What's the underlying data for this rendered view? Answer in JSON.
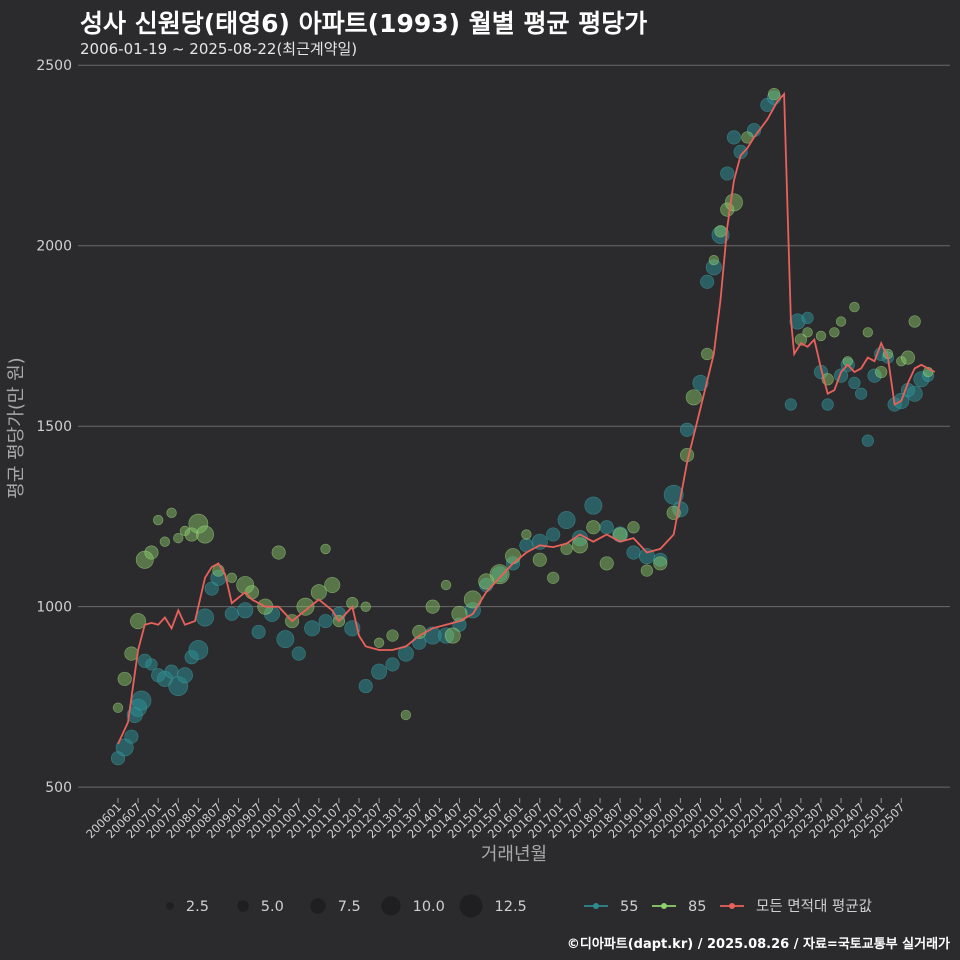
{
  "chart_data": {
    "type": "scatter",
    "title": "성사 신원당(태영6) 아파트(1993) 월별 평균 평당가",
    "subtitle": "2006-01-19 ~ 2025-08-22(최근계약일)",
    "xlabel": "거래년월",
    "ylabel": "평균 평당가(만 원)",
    "ylim": [
      470,
      2520
    ],
    "yticks": [
      500,
      1000,
      1500,
      2000,
      2500
    ],
    "xticks": [
      "200601",
      "200607",
      "200701",
      "200707",
      "200801",
      "200807",
      "200901",
      "200907",
      "201001",
      "201007",
      "201101",
      "201107",
      "201201",
      "201207",
      "201301",
      "201307",
      "201401",
      "201407",
      "201501",
      "201507",
      "201601",
      "201607",
      "201701",
      "201707",
      "201801",
      "201807",
      "201901",
      "201907",
      "202001",
      "202007",
      "202101",
      "202107",
      "202201",
      "202207",
      "202301",
      "202307",
      "202401",
      "202407",
      "202501",
      "202507"
    ],
    "size_legend": {
      "labels": [
        "2.5",
        "5.0",
        "7.5",
        "10.0",
        "12.5"
      ],
      "values": [
        2.5,
        5.0,
        7.5,
        10.0,
        12.5
      ]
    },
    "series_legend": [
      {
        "label": "55",
        "color": "#2e8b8f"
      },
      {
        "label": "85",
        "color": "#8fd16c"
      },
      {
        "label": "모든 면적대 평균값",
        "color": "#e8615b"
      }
    ],
    "line": {
      "name": "모든 면적대 평균값",
      "anchors": [
        [
          0,
          620
        ],
        [
          3,
          680
        ],
        [
          6,
          880
        ],
        [
          8,
          950
        ],
        [
          10,
          955
        ],
        [
          12,
          950
        ],
        [
          14,
          970
        ],
        [
          16,
          940
        ],
        [
          18,
          990
        ],
        [
          20,
          950
        ],
        [
          23,
          960
        ],
        [
          26,
          1080
        ],
        [
          28,
          1110
        ],
        [
          30,
          1120
        ],
        [
          32,
          1090
        ],
        [
          34,
          1010
        ],
        [
          38,
          1040
        ],
        [
          40,
          1020
        ],
        [
          44,
          1000
        ],
        [
          48,
          1000
        ],
        [
          52,
          960
        ],
        [
          56,
          990
        ],
        [
          60,
          1020
        ],
        [
          64,
          990
        ],
        [
          66,
          960
        ],
        [
          70,
          1000
        ],
        [
          72,
          920
        ],
        [
          74,
          890
        ],
        [
          78,
          880
        ],
        [
          82,
          880
        ],
        [
          86,
          890
        ],
        [
          90,
          920
        ],
        [
          94,
          940
        ],
        [
          98,
          950
        ],
        [
          102,
          960
        ],
        [
          106,
          980
        ],
        [
          110,
          1040
        ],
        [
          114,
          1080
        ],
        [
          118,
          1120
        ],
        [
          122,
          1150
        ],
        [
          126,
          1170
        ],
        [
          130,
          1165
        ],
        [
          134,
          1175
        ],
        [
          138,
          1200
        ],
        [
          142,
          1180
        ],
        [
          146,
          1200
        ],
        [
          150,
          1180
        ],
        [
          154,
          1190
        ],
        [
          158,
          1150
        ],
        [
          162,
          1160
        ],
        [
          166,
          1200
        ],
        [
          170,
          1400
        ],
        [
          174,
          1550
        ],
        [
          178,
          1700
        ],
        [
          180,
          1850
        ],
        [
          182,
          2050
        ],
        [
          184,
          2180
        ],
        [
          186,
          2250
        ],
        [
          188,
          2270
        ],
        [
          190,
          2300
        ],
        [
          194,
          2350
        ],
        [
          197,
          2400
        ],
        [
          199,
          2420
        ],
        [
          201,
          1800
        ],
        [
          202,
          1700
        ],
        [
          204,
          1730
        ],
        [
          206,
          1720
        ],
        [
          208,
          1740
        ],
        [
          210,
          1660
        ],
        [
          212,
          1590
        ],
        [
          214,
          1600
        ],
        [
          216,
          1650
        ],
        [
          218,
          1670
        ],
        [
          220,
          1650
        ],
        [
          222,
          1660
        ],
        [
          224,
          1690
        ],
        [
          226,
          1680
        ],
        [
          228,
          1730
        ],
        [
          230,
          1690
        ],
        [
          232,
          1560
        ],
        [
          234,
          1570
        ],
        [
          236,
          1620
        ],
        [
          238,
          1660
        ],
        [
          240,
          1670
        ],
        [
          242,
          1660
        ],
        [
          244,
          1650
        ]
      ]
    },
    "points_55": [
      [
        0,
        580,
        5
      ],
      [
        2,
        610,
        7
      ],
      [
        4,
        640,
        5
      ],
      [
        5,
        700,
        6
      ],
      [
        6,
        720,
        7
      ],
      [
        7,
        740,
        8
      ],
      [
        8,
        850,
        5
      ],
      [
        10,
        840,
        4
      ],
      [
        12,
        810,
        5
      ],
      [
        14,
        800,
        6
      ],
      [
        16,
        820,
        5
      ],
      [
        18,
        780,
        8
      ],
      [
        20,
        810,
        6
      ],
      [
        22,
        860,
        5
      ],
      [
        24,
        880,
        8
      ],
      [
        26,
        970,
        7
      ],
      [
        28,
        1050,
        5
      ],
      [
        30,
        1080,
        6
      ],
      [
        34,
        980,
        5
      ],
      [
        38,
        990,
        6
      ],
      [
        42,
        930,
        5
      ],
      [
        46,
        980,
        6
      ],
      [
        50,
        910,
        7
      ],
      [
        54,
        870,
        5
      ],
      [
        58,
        940,
        6
      ],
      [
        62,
        960,
        5
      ],
      [
        66,
        980,
        5
      ],
      [
        70,
        940,
        6
      ],
      [
        74,
        780,
        5
      ],
      [
        78,
        820,
        6
      ],
      [
        82,
        840,
        5
      ],
      [
        86,
        870,
        6
      ],
      [
        90,
        900,
        5
      ],
      [
        94,
        920,
        7
      ],
      [
        98,
        920,
        6
      ],
      [
        102,
        950,
        5
      ],
      [
        106,
        990,
        6
      ],
      [
        110,
        1060,
        5
      ],
      [
        114,
        1090,
        6
      ],
      [
        118,
        1120,
        5
      ],
      [
        122,
        1170,
        5
      ],
      [
        126,
        1180,
        6
      ],
      [
        130,
        1200,
        5
      ],
      [
        134,
        1240,
        7
      ],
      [
        138,
        1190,
        6
      ],
      [
        142,
        1280,
        7
      ],
      [
        146,
        1220,
        5
      ],
      [
        150,
        1200,
        6
      ],
      [
        154,
        1150,
        5
      ],
      [
        158,
        1140,
        6
      ],
      [
        162,
        1130,
        5
      ],
      [
        166,
        1310,
        8
      ],
      [
        168,
        1270,
        6
      ],
      [
        170,
        1490,
        5
      ],
      [
        174,
        1620,
        6
      ],
      [
        176,
        1900,
        5
      ],
      [
        178,
        1940,
        6
      ],
      [
        180,
        2030,
        7
      ],
      [
        182,
        2200,
        5
      ],
      [
        184,
        2300,
        5
      ],
      [
        186,
        2260,
        5
      ],
      [
        190,
        2320,
        5
      ],
      [
        194,
        2390,
        5
      ],
      [
        196,
        2410,
        5
      ],
      [
        201,
        1560,
        4
      ],
      [
        203,
        1790,
        6
      ],
      [
        206,
        1800,
        4
      ],
      [
        210,
        1650,
        5
      ],
      [
        212,
        1560,
        4
      ],
      [
        216,
        1640,
        5
      ],
      [
        218,
        1670,
        5
      ],
      [
        220,
        1620,
        4
      ],
      [
        222,
        1590,
        4
      ],
      [
        224,
        1460,
        4
      ],
      [
        226,
        1640,
        5
      ],
      [
        228,
        1700,
        5
      ],
      [
        230,
        1690,
        4
      ],
      [
        232,
        1560,
        5
      ],
      [
        234,
        1570,
        6
      ],
      [
        236,
        1600,
        5
      ],
      [
        238,
        1590,
        6
      ],
      [
        240,
        1630,
        6
      ],
      [
        242,
        1640,
        4
      ]
    ],
    "points_85": [
      [
        0,
        720,
        3
      ],
      [
        2,
        800,
        5
      ],
      [
        4,
        870,
        5
      ],
      [
        6,
        960,
        6
      ],
      [
        8,
        1130,
        7
      ],
      [
        10,
        1150,
        5
      ],
      [
        12,
        1240,
        3
      ],
      [
        14,
        1180,
        3
      ],
      [
        16,
        1260,
        3
      ],
      [
        18,
        1190,
        3
      ],
      [
        20,
        1210,
        3
      ],
      [
        22,
        1200,
        5
      ],
      [
        24,
        1230,
        8
      ],
      [
        26,
        1200,
        7
      ],
      [
        30,
        1100,
        4
      ],
      [
        34,
        1080,
        3
      ],
      [
        38,
        1060,
        7
      ],
      [
        40,
        1040,
        5
      ],
      [
        44,
        1000,
        6
      ],
      [
        48,
        1150,
        5
      ],
      [
        52,
        960,
        5
      ],
      [
        56,
        1000,
        7
      ],
      [
        60,
        1040,
        6
      ],
      [
        62,
        1160,
        3
      ],
      [
        64,
        1060,
        6
      ],
      [
        66,
        960,
        4
      ],
      [
        70,
        1010,
        4
      ],
      [
        74,
        1000,
        3
      ],
      [
        78,
        900,
        3
      ],
      [
        82,
        920,
        4
      ],
      [
        86,
        700,
        3
      ],
      [
        90,
        930,
        5
      ],
      [
        94,
        1000,
        5
      ],
      [
        98,
        1060,
        3
      ],
      [
        100,
        920,
        6
      ],
      [
        102,
        980,
        6
      ],
      [
        106,
        1020,
        7
      ],
      [
        110,
        1070,
        6
      ],
      [
        114,
        1090,
        8
      ],
      [
        118,
        1140,
        6
      ],
      [
        122,
        1200,
        3
      ],
      [
        126,
        1130,
        5
      ],
      [
        130,
        1080,
        4
      ],
      [
        134,
        1160,
        4
      ],
      [
        138,
        1170,
        6
      ],
      [
        142,
        1220,
        5
      ],
      [
        146,
        1120,
        5
      ],
      [
        150,
        1200,
        5
      ],
      [
        154,
        1220,
        4
      ],
      [
        158,
        1100,
        4
      ],
      [
        162,
        1120,
        5
      ],
      [
        166,
        1260,
        5
      ],
      [
        170,
        1420,
        5
      ],
      [
        172,
        1580,
        6
      ],
      [
        176,
        1700,
        4
      ],
      [
        178,
        1960,
        3
      ],
      [
        180,
        2040,
        4
      ],
      [
        182,
        2100,
        5
      ],
      [
        184,
        2120,
        7
      ],
      [
        188,
        2300,
        4
      ],
      [
        196,
        2420,
        4
      ],
      [
        204,
        1740,
        4
      ],
      [
        206,
        1760,
        3
      ],
      [
        210,
        1750,
        3
      ],
      [
        212,
        1630,
        4
      ],
      [
        214,
        1760,
        3
      ],
      [
        216,
        1790,
        3
      ],
      [
        218,
        1680,
        3
      ],
      [
        220,
        1830,
        3
      ],
      [
        224,
        1760,
        3
      ],
      [
        228,
        1650,
        4
      ],
      [
        230,
        1700,
        3
      ],
      [
        234,
        1680,
        3
      ],
      [
        236,
        1690,
        5
      ],
      [
        238,
        1790,
        4
      ],
      [
        242,
        1650,
        3
      ]
    ]
  },
  "footer": "©디아파트(dapt.kr) / 2025.08.26 / 자료=국토교통부 실거래가"
}
